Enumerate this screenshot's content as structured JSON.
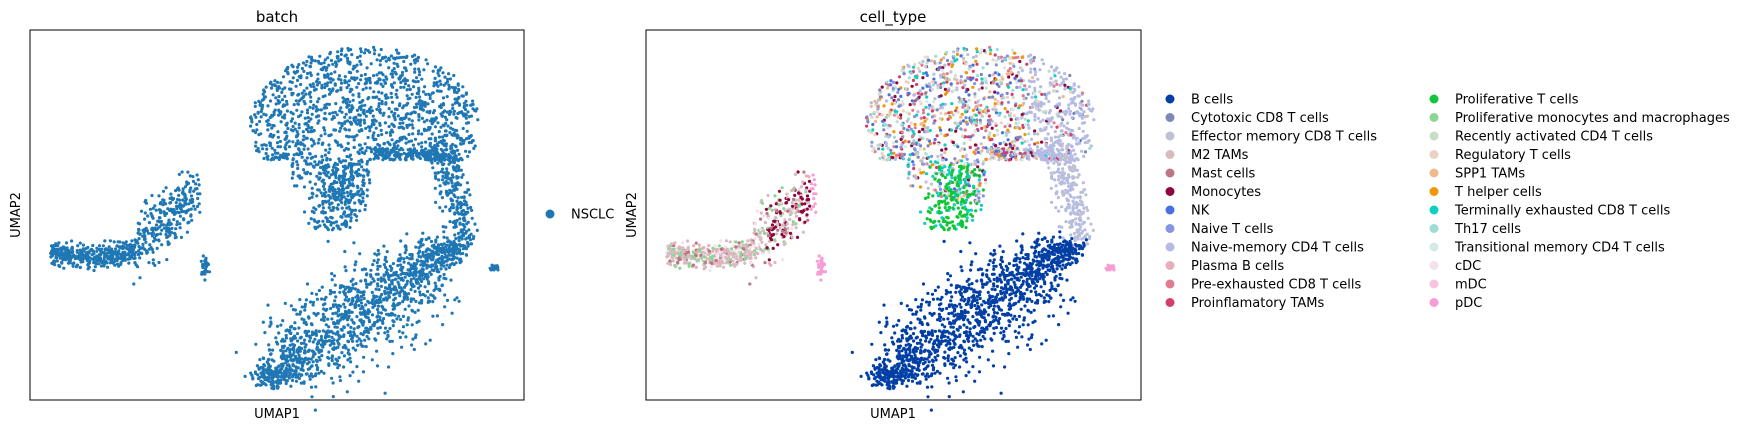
{
  "chart_data": [
    {
      "type": "scatter",
      "title": "batch",
      "xlabel": "UMAP1",
      "ylabel": "UMAP2",
      "grid": false,
      "ticks": false,
      "legend_position": "right",
      "series": [
        {
          "name": "NSCLC",
          "color": "#1f77b4"
        }
      ]
    },
    {
      "type": "scatter",
      "title": "cell_type",
      "xlabel": "UMAP1",
      "ylabel": "UMAP2",
      "grid": false,
      "ticks": false,
      "legend_position": "right",
      "legend_columns": 2,
      "series": [
        {
          "name": "B cells",
          "color": "#023fa5"
        },
        {
          "name": "Cytotoxic CD8 T cells",
          "color": "#7d87b9"
        },
        {
          "name": "Effector memory CD8 T cells",
          "color": "#bec1d4"
        },
        {
          "name": "M2 TAMs",
          "color": "#d6bcc0"
        },
        {
          "name": "Mast cells",
          "color": "#bb7784"
        },
        {
          "name": "Monocytes",
          "color": "#8e063b"
        },
        {
          "name": "NK",
          "color": "#4a6fe3"
        },
        {
          "name": "Naive T cells",
          "color": "#8595e1"
        },
        {
          "name": "Naive-memory CD4 T cells",
          "color": "#b5bbe3"
        },
        {
          "name": "Plasma B cells",
          "color": "#e6afb9"
        },
        {
          "name": "Pre-exhausted CD8 T cells",
          "color": "#e07b91"
        },
        {
          "name": "Proinflamatory TAMs",
          "color": "#d33f6a"
        },
        {
          "name": "Proliferative T cells",
          "color": "#11c638"
        },
        {
          "name": "Proliferative monocytes and macrophages",
          "color": "#8dd593"
        },
        {
          "name": "Recently activated CD4 T cells",
          "color": "#c6dec7"
        },
        {
          "name": "Regulatory T cells",
          "color": "#ead3c6"
        },
        {
          "name": "SPP1 TAMs",
          "color": "#f0b98d"
        },
        {
          "name": "T helper cells",
          "color": "#ef9708"
        },
        {
          "name": "Terminally exhausted CD8 T cells",
          "color": "#0fcfc0"
        },
        {
          "name": "Th17 cells",
          "color": "#9cded6"
        },
        {
          "name": "Transitional memory CD4 T cells",
          "color": "#d5eae7"
        },
        {
          "name": "cDC",
          "color": "#f3e1eb"
        },
        {
          "name": "mDC",
          "color": "#f6c4e1"
        },
        {
          "name": "pDC",
          "color": "#f79cd4"
        }
      ]
    }
  ]
}
